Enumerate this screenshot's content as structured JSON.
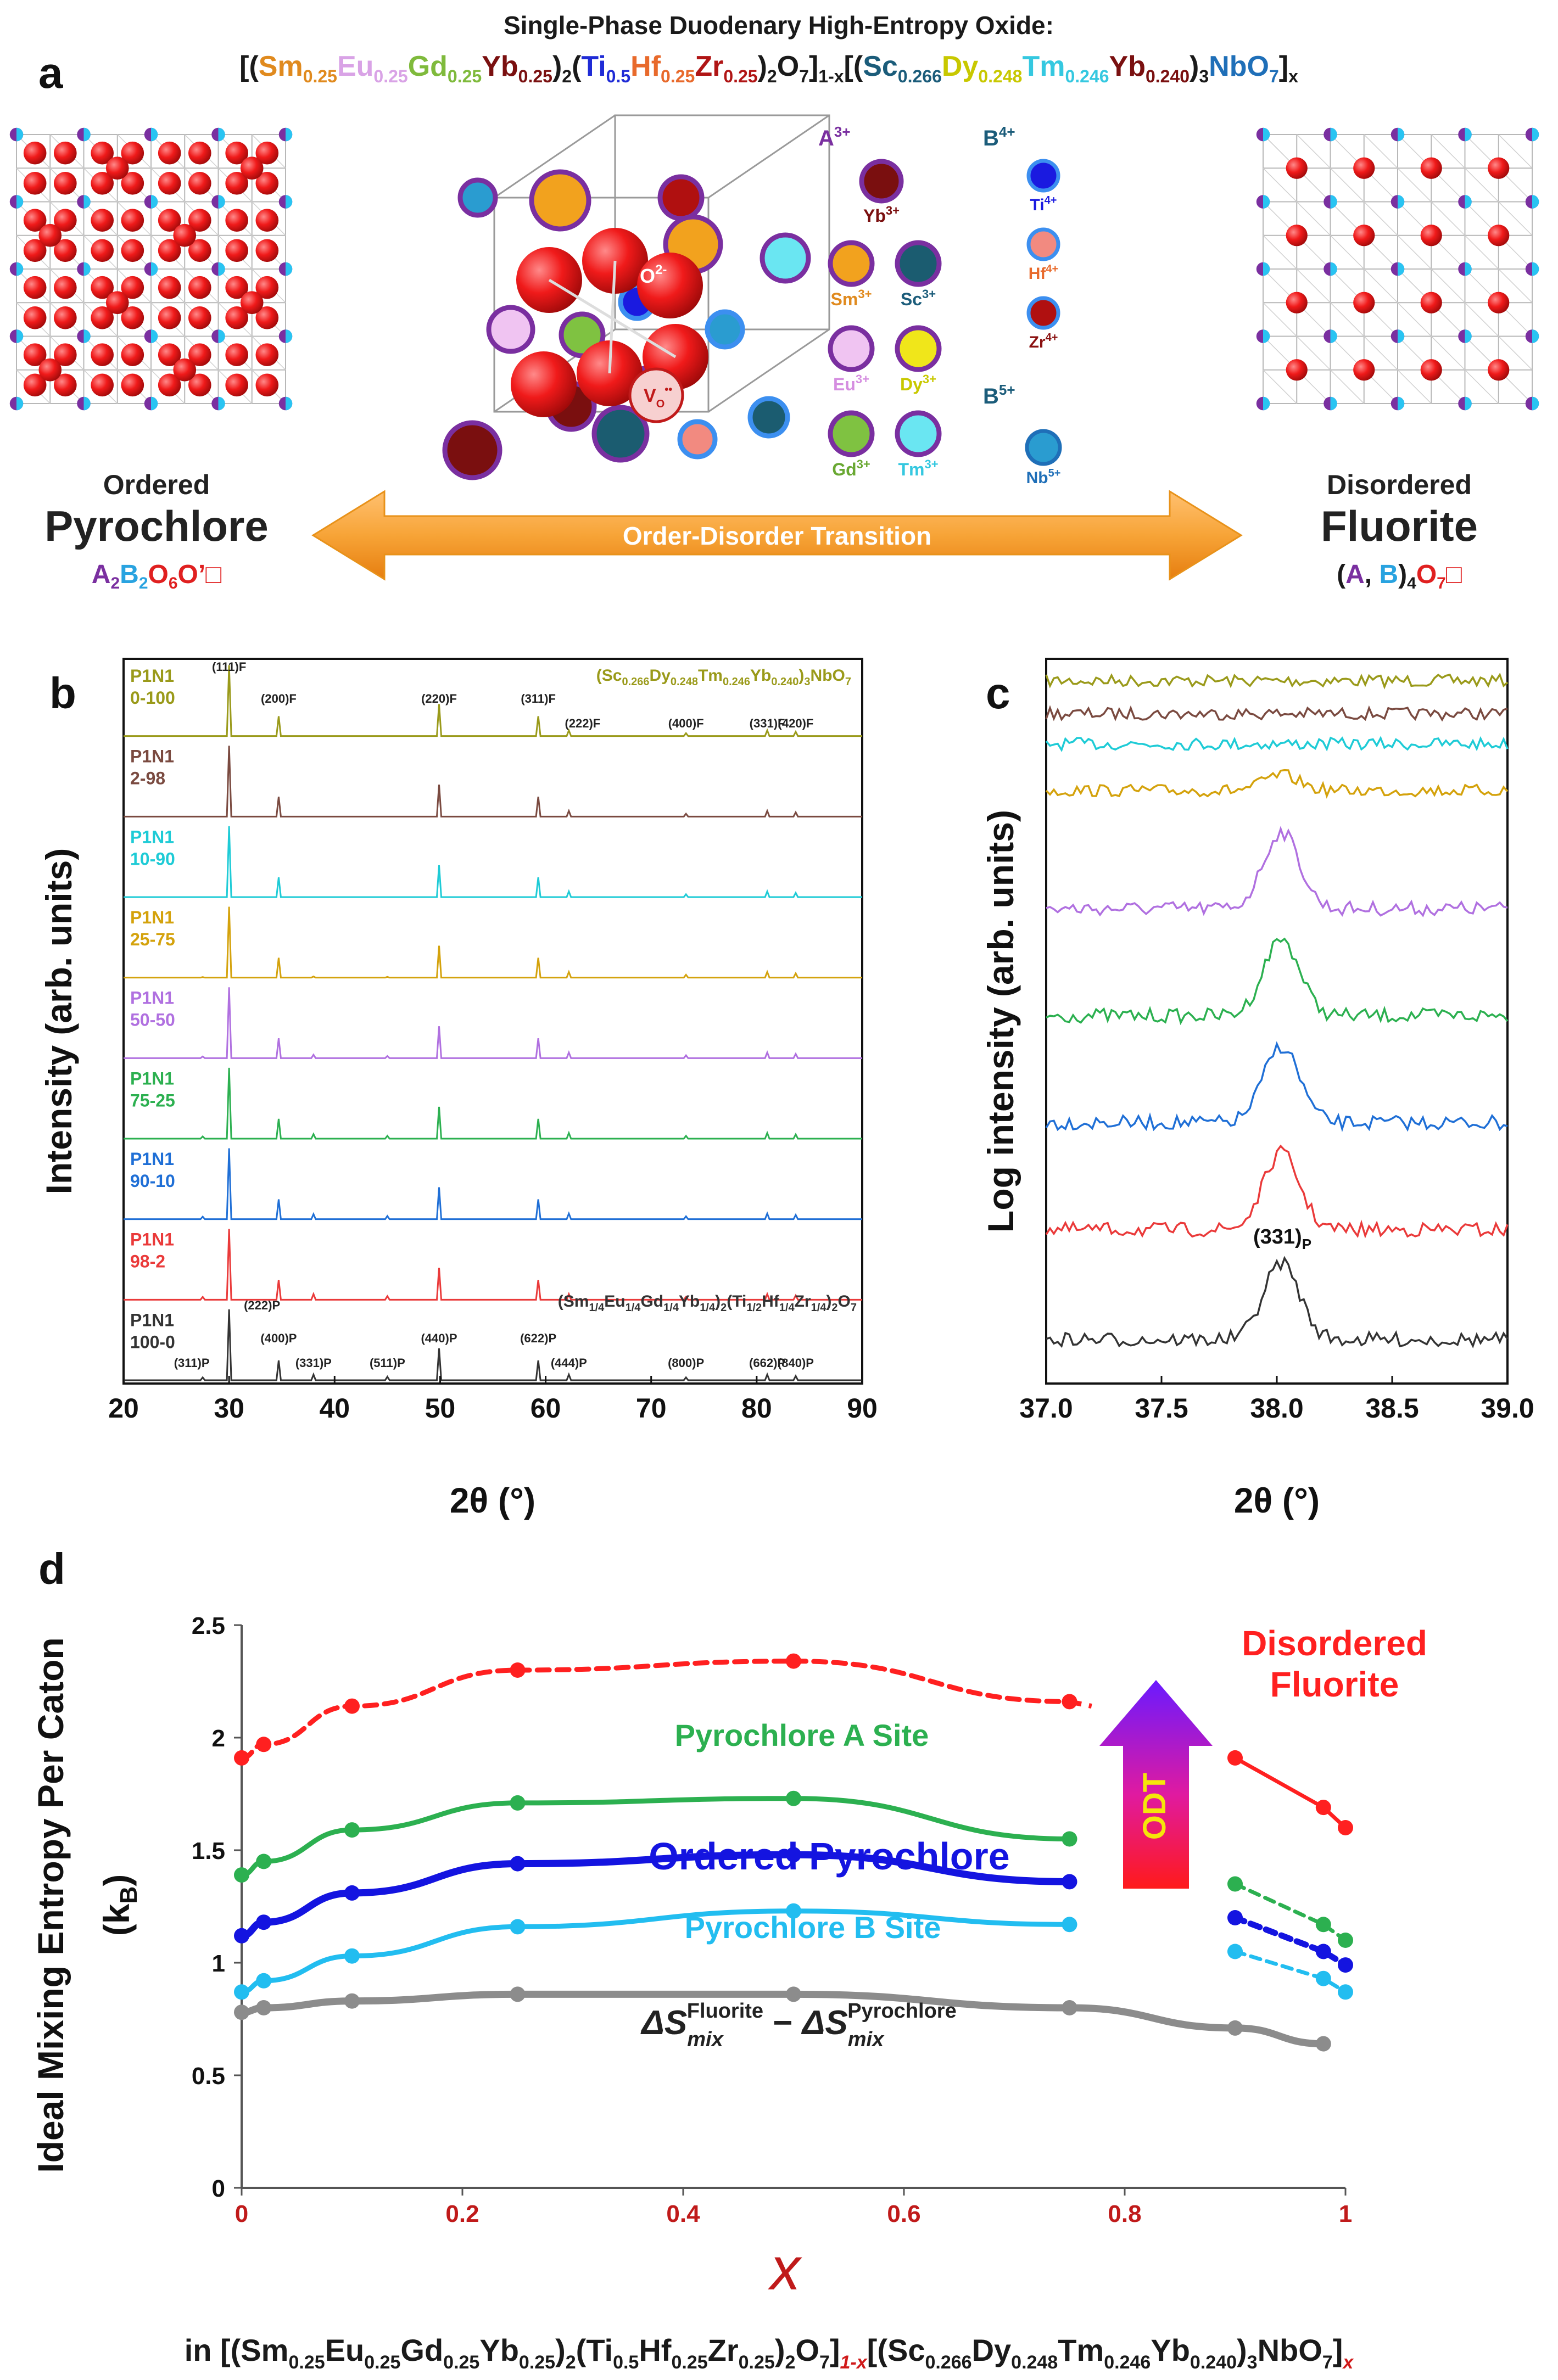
{
  "title": "Single-Phase Duodenary High-Entropy Oxide:",
  "formula_top": {
    "segments": [
      {
        "t": "[(",
        "c": "#1a1a1a"
      },
      {
        "t": "Sm",
        "c": "#e08a1e"
      },
      {
        "t": "0.25",
        "c": "#e08a1e",
        "sub": true
      },
      {
        "t": "Eu",
        "c": "#d9a3e6"
      },
      {
        "t": "0.25",
        "c": "#d9a3e6",
        "sub": true
      },
      {
        "t": "Gd",
        "c": "#7fba3c"
      },
      {
        "t": "0.25",
        "c": "#7fba3c",
        "sub": true
      },
      {
        "t": "Yb",
        "c": "#7a1010"
      },
      {
        "t": "0.25",
        "c": "#7a1010",
        "sub": true
      },
      {
        "t": ")",
        "c": "#1a1a1a"
      },
      {
        "t": "2",
        "c": "#1a1a1a",
        "sub": true
      },
      {
        "t": "(",
        "c": "#1a1a1a"
      },
      {
        "t": "Ti",
        "c": "#1f2bd6"
      },
      {
        "t": "0.5",
        "c": "#1f2bd6",
        "sub": true
      },
      {
        "t": "Hf",
        "c": "#e86a2c"
      },
      {
        "t": "0.25",
        "c": "#e86a2c",
        "sub": true
      },
      {
        "t": "Zr",
        "c": "#b01515"
      },
      {
        "t": "0.25",
        "c": "#b01515",
        "sub": true
      },
      {
        "t": ")",
        "c": "#1a1a1a"
      },
      {
        "t": "2",
        "c": "#1a1a1a",
        "sub": true
      },
      {
        "t": "O",
        "c": "#1a1a1a"
      },
      {
        "t": "7",
        "c": "#1a1a1a",
        "sub": true
      },
      {
        "t": "]",
        "c": "#1a1a1a"
      },
      {
        "t": "1-x",
        "c": "#1a1a1a",
        "sub": true
      },
      {
        "t": "[(",
        "c": "#1a1a1a"
      },
      {
        "t": "Sc",
        "c": "#1b5c7a"
      },
      {
        "t": "0.266",
        "c": "#1b5c7a",
        "sub": true
      },
      {
        "t": "Dy",
        "c": "#c8c800"
      },
      {
        "t": "0.248",
        "c": "#c8c800",
        "sub": true
      },
      {
        "t": "Tm",
        "c": "#35c8e0"
      },
      {
        "t": "0.246",
        "c": "#35c8e0",
        "sub": true
      },
      {
        "t": "Yb",
        "c": "#7a1010"
      },
      {
        "t": "0.240",
        "c": "#7a1010",
        "sub": true
      },
      {
        "t": ")",
        "c": "#1a1a1a"
      },
      {
        "t": "3",
        "c": "#1a1a1a",
        "sub": true
      },
      {
        "t": "NbO",
        "c": "#1f6fb8"
      },
      {
        "t": "7",
        "c": "#1f6fb8",
        "sub": true
      },
      {
        "t": "]",
        "c": "#1a1a1a"
      },
      {
        "t": "x",
        "c": "#1a1a1a",
        "sub": true
      }
    ]
  },
  "panel_labels": [
    "a",
    "b",
    "c",
    "d"
  ],
  "panel_a": {
    "left": {
      "caption_small": "Ordered",
      "caption_big": "Pyrochlore",
      "formula": [
        {
          "t": "A",
          "c": "#7a2fa0"
        },
        {
          "t": "2",
          "c": "#7a2fa0",
          "sub": true
        },
        {
          "t": "B",
          "c": "#29a3e0"
        },
        {
          "t": "2",
          "c": "#29a3e0",
          "sub": true
        },
        {
          "t": "O",
          "c": "#e02020"
        },
        {
          "t": "6",
          "c": "#e02020",
          "sub": true
        },
        {
          "t": "O’",
          "c": "#e02020"
        },
        {
          "t": "□",
          "c": "#e02020"
        }
      ]
    },
    "right": {
      "caption_small": "Disordered",
      "caption_big": "Fluorite",
      "formula": [
        {
          "t": "(",
          "c": "#1a1a1a"
        },
        {
          "t": "A",
          "c": "#7a2fa0"
        },
        {
          "t": ", ",
          "c": "#1a1a1a"
        },
        {
          "t": "B",
          "c": "#29a3e0"
        },
        {
          "t": ")",
          "c": "#1a1a1a"
        },
        {
          "t": "4",
          "c": "#1a1a1a",
          "sub": true
        },
        {
          "t": "O",
          "c": "#e02020"
        },
        {
          "t": "7",
          "c": "#e02020",
          "sub": true
        },
        {
          "t": "□",
          "c": "#e02020"
        }
      ]
    },
    "arrow_label": "Order-Disorder Transition",
    "cell_labels": {
      "oxygen": "O",
      "oxygen_sup": "2-",
      "vacancy": "V",
      "vacancy_sub": "O",
      "vacancy_sup": "••"
    },
    "a_site": {
      "header": "A",
      "header_sup": "3+",
      "ions": [
        {
          "el": "Yb",
          "sup": "3+",
          "fill": "#7a0f0f",
          "text": "#7a0f0f"
        },
        {
          "el": "Sm",
          "sup": "3+",
          "fill": "#f2a21e",
          "text": "#e08a1e"
        },
        {
          "el": "Sc",
          "sup": "3+",
          "fill": "#1b5c70",
          "text": "#1b5c7a"
        },
        {
          "el": "Eu",
          "sup": "3+",
          "fill": "#f0c4f2",
          "text": "#d58ee0"
        },
        {
          "el": "Dy",
          "sup": "3+",
          "fill": "#f0e61a",
          "text": "#c8c800"
        },
        {
          "el": "Gd",
          "sup": "3+",
          "fill": "#7fc241",
          "text": "#69a832"
        },
        {
          "el": "Tm",
          "sup": "3+",
          "fill": "#6ae6f2",
          "text": "#35c8e0"
        }
      ]
    },
    "b4_site": {
      "header": "B",
      "header_sup": "4+",
      "ions": [
        {
          "el": "Ti",
          "sup": "4+",
          "fill": "#1a1ae0",
          "text": "#1a1ae0"
        },
        {
          "el": "Hf",
          "sup": "4+",
          "fill": "#f28a80",
          "text": "#e86a2c"
        },
        {
          "el": "Zr",
          "sup": "4+",
          "fill": "#b01010",
          "text": "#8a1010"
        }
      ]
    },
    "b5_site": {
      "header": "B",
      "header_sup": "5+",
      "ions": [
        {
          "el": "Nb",
          "sup": "5+",
          "fill": "#2a9cd0",
          "text": "#1f6fb8"
        }
      ]
    }
  },
  "panel_b": {
    "chart_data": {
      "type": "line",
      "xlabel": "2θ (°)",
      "ylabel": "Intensity (arb. units)",
      "xlim": [
        20,
        90
      ],
      "xticks": [
        20,
        30,
        40,
        50,
        60,
        70,
        80,
        90
      ],
      "top_formula": "(Sc0.266Dy0.248Tm0.246Yb0.240)3NbO7",
      "bottom_formula": "(Sm1/4Eu1/4Gd1/4Yb1/4)2(Ti1/2Hf1/4Zr1/4)2O7",
      "fluorite_peaks": [
        {
          "x": 30.0,
          "h": 1.0,
          "label": "(111)F"
        },
        {
          "x": 34.7,
          "h": 0.28,
          "label": "(200)F"
        },
        {
          "x": 49.9,
          "h": 0.45,
          "label": "(220)F"
        },
        {
          "x": 59.3,
          "h": 0.28,
          "label": "(311)F"
        },
        {
          "x": 62.2,
          "h": 0.08,
          "label": "(222)F"
        },
        {
          "x": 73.3,
          "h": 0.04,
          "label": "(400)F"
        },
        {
          "x": 81.0,
          "h": 0.08,
          "label": "(331)F"
        },
        {
          "x": 83.7,
          "h": 0.06,
          "label": "(420)F"
        }
      ],
      "pyrochlore_peaks": [
        {
          "x": 27.5,
          "h": 0.04,
          "label": "(311)P"
        },
        {
          "x": 30.0,
          "h": 1.0,
          "label": "(222)P"
        },
        {
          "x": 34.7,
          "h": 0.28,
          "label": "(400)P"
        },
        {
          "x": 38.0,
          "h": 0.08,
          "label": "(331)P"
        },
        {
          "x": 45.0,
          "h": 0.05,
          "label": "(511)P"
        },
        {
          "x": 49.9,
          "h": 0.45,
          "label": "(440)P"
        },
        {
          "x": 59.3,
          "h": 0.28,
          "label": "(622)P"
        },
        {
          "x": 62.2,
          "h": 0.08,
          "label": "(444)P"
        },
        {
          "x": 73.3,
          "h": 0.04,
          "label": "(800)P"
        },
        {
          "x": 81.0,
          "h": 0.06,
          "label": "(662)P"
        },
        {
          "x": 83.7,
          "h": 0.06,
          "label": "(840)P"
        }
      ],
      "series": [
        {
          "name": "P1N1 0-100",
          "line1": "P1N1",
          "line2": "0-100",
          "color": "#9a9a1a",
          "pyro": 0
        },
        {
          "name": "P1N1 2-98",
          "line1": "P1N1",
          "line2": "2-98",
          "color": "#7a4a40",
          "pyro": 0
        },
        {
          "name": "P1N1 10-90",
          "line1": "P1N1",
          "line2": "10-90",
          "color": "#1ecbd6",
          "pyro": 0
        },
        {
          "name": "P1N1 25-75",
          "line1": "P1N1",
          "line2": "25-75",
          "color": "#d4a20c",
          "pyro": 0.2
        },
        {
          "name": "P1N1 50-50",
          "line1": "P1N1",
          "line2": "50-50",
          "color": "#b070e0",
          "pyro": 0.6
        },
        {
          "name": "P1N1 75-25",
          "line1": "P1N1",
          "line2": "75-25",
          "color": "#2cb050",
          "pyro": 0.8
        },
        {
          "name": "P1N1 90-10",
          "line1": "P1N1",
          "line2": "90-10",
          "color": "#1f6fd6",
          "pyro": 0.9
        },
        {
          "name": "P1N1 98-2",
          "line1": "P1N1",
          "line2": "98-2",
          "color": "#ea3a3a",
          "pyro": 1.0
        },
        {
          "name": "P1N1 100-0",
          "line1": "P1N1",
          "line2": "100-0",
          "color": "#333333",
          "pyro": 1.0
        }
      ]
    }
  },
  "panel_c": {
    "chart_data": {
      "type": "line",
      "xlabel": "2θ (°)",
      "ylabel": "Log intensity (arb. units)",
      "xlim": [
        37.0,
        39.0
      ],
      "xticks": [
        "37.0",
        "37.5",
        "38.0",
        "38.5",
        "39.0"
      ],
      "peak_label": "(331)P",
      "peak_center": 38.02,
      "series": [
        {
          "name": "P1N1 0-100",
          "color": "#9a9a1a",
          "peak": 0
        },
        {
          "name": "P1N1 2-98",
          "color": "#7a4a40",
          "peak": 0
        },
        {
          "name": "P1N1 10-90",
          "color": "#1ecbd6",
          "peak": 0
        },
        {
          "name": "P1N1 25-75",
          "color": "#d4a20c",
          "peak": 0.2
        },
        {
          "name": "P1N1 50-50",
          "color": "#b070e0",
          "peak": 1.0
        },
        {
          "name": "P1N1 75-25",
          "color": "#2cb050",
          "peak": 1.0
        },
        {
          "name": "P1N1 90-10",
          "color": "#1f6fd6",
          "peak": 1.0
        },
        {
          "name": "P1N1 98-2",
          "color": "#ea3a3a",
          "peak": 1.0
        },
        {
          "name": "P1N1 100-0",
          "color": "#333333",
          "peak": 1.0
        }
      ]
    }
  },
  "panel_d": {
    "chart_data": {
      "type": "line",
      "xlabel": "x",
      "ylabel_line1": "Ideal Mixing Entropy Per Caton",
      "ylabel_line2": "(k",
      "ylabel_sub": "B",
      "ylabel_end": ")",
      "xlim": [
        0,
        1
      ],
      "ylim": [
        0,
        2.5
      ],
      "xticks": [
        "0",
        "0.2",
        "0.4",
        "0.6",
        "0.8",
        "1"
      ],
      "yticks": [
        "0",
        "0.5",
        "1",
        "1.5",
        "2",
        "2.5"
      ],
      "series": [
        {
          "name": "Disordered Fluorite",
          "color": "#ff2020",
          "style": "dashed",
          "width": 9,
          "points": [
            [
              0,
              1.91
            ],
            [
              0.02,
              1.97
            ],
            [
              0.1,
              2.14
            ],
            [
              0.25,
              2.3
            ],
            [
              0.5,
              2.34
            ],
            [
              0.75,
              2.16
            ]
          ],
          "tail": [
            [
              0.9,
              1.91
            ],
            [
              0.98,
              1.69
            ],
            [
              1.0,
              1.6
            ]
          ],
          "tail_style": "solid"
        },
        {
          "name": "Pyrochlore A Site",
          "color": "#2cb050",
          "style": "solid",
          "width": 9,
          "points": [
            [
              0,
              1.39
            ],
            [
              0.02,
              1.45
            ],
            [
              0.1,
              1.59
            ],
            [
              0.25,
              1.71
            ],
            [
              0.5,
              1.73
            ],
            [
              0.75,
              1.55
            ]
          ],
          "tail": [
            [
              0.9,
              1.35
            ],
            [
              0.98,
              1.17
            ],
            [
              1.0,
              1.1
            ]
          ],
          "tail_style": "dashed"
        },
        {
          "name": "Ordered Pyrochlore",
          "color": "#1414e0",
          "style": "solid",
          "width": 13,
          "points": [
            [
              0,
              1.12
            ],
            [
              0.02,
              1.18
            ],
            [
              0.1,
              1.31
            ],
            [
              0.25,
              1.44
            ],
            [
              0.5,
              1.48
            ],
            [
              0.75,
              1.36
            ]
          ],
          "tail": [
            [
              0.9,
              1.2
            ],
            [
              0.98,
              1.05
            ],
            [
              1.0,
              0.99
            ]
          ],
          "tail_style": "dashed"
        },
        {
          "name": "Pyrochlore B Site",
          "color": "#22bdf0",
          "style": "solid",
          "width": 9,
          "points": [
            [
              0,
              0.87
            ],
            [
              0.02,
              0.92
            ],
            [
              0.1,
              1.03
            ],
            [
              0.25,
              1.16
            ],
            [
              0.5,
              1.23
            ],
            [
              0.75,
              1.17
            ]
          ],
          "tail": [
            [
              0.9,
              1.05
            ],
            [
              0.98,
              0.93
            ],
            [
              1.0,
              0.87
            ]
          ],
          "tail_style": "dashed"
        },
        {
          "name": "ΔS_mix^Fluorite − ΔS_mix^Pyrochlore",
          "color": "#8c8c8c",
          "style": "solid",
          "width": 13,
          "points": [
            [
              0,
              0.78
            ],
            [
              0.02,
              0.8
            ],
            [
              0.1,
              0.83
            ],
            [
              0.25,
              0.86
            ],
            [
              0.5,
              0.86
            ],
            [
              0.75,
              0.8
            ],
            [
              0.9,
              0.71
            ],
            [
              0.98,
              0.64
            ]
          ],
          "tail": [],
          "tail_style": "solid"
        }
      ],
      "annotations": {
        "disordered_line1": "Disordered",
        "disordered_line2": "Fluorite",
        "a_site": "Pyrochlore A Site",
        "ordered": "Ordered Pyrochlore",
        "b_site": "Pyrochlore B Site",
        "delta_s": "ΔS",
        "mix": "mix",
        "fluorite": "Fluorite",
        "pyrochlore": "Pyrochlore",
        "minus": " − ",
        "odt": "ODT"
      }
    }
  },
  "bottom_formula": {
    "segments": [
      {
        "t": "in [(Sm",
        "c": "#1a1a1a"
      },
      {
        "t": "0.25",
        "c": "#1a1a1a",
        "sub": true
      },
      {
        "t": "Eu",
        "c": "#1a1a1a"
      },
      {
        "t": "0.25",
        "c": "#1a1a1a",
        "sub": true
      },
      {
        "t": "Gd",
        "c": "#1a1a1a"
      },
      {
        "t": "0.25",
        "c": "#1a1a1a",
        "sub": true
      },
      {
        "t": "Yb",
        "c": "#1a1a1a"
      },
      {
        "t": "0.25",
        "c": "#1a1a1a",
        "sub": true
      },
      {
        "t": ")",
        "c": "#1a1a1a"
      },
      {
        "t": "2",
        "c": "#1a1a1a",
        "sub": true
      },
      {
        "t": "(Ti",
        "c": "#1a1a1a"
      },
      {
        "t": "0.5",
        "c": "#1a1a1a",
        "sub": true
      },
      {
        "t": "Hf",
        "c": "#1a1a1a"
      },
      {
        "t": "0.25",
        "c": "#1a1a1a",
        "sub": true
      },
      {
        "t": "Zr",
        "c": "#1a1a1a"
      },
      {
        "t": "0.25",
        "c": "#1a1a1a",
        "sub": true
      },
      {
        "t": ")",
        "c": "#1a1a1a"
      },
      {
        "t": "2",
        "c": "#1a1a1a",
        "sub": true
      },
      {
        "t": "O",
        "c": "#1a1a1a"
      },
      {
        "t": "7",
        "c": "#1a1a1a",
        "sub": true
      },
      {
        "t": "]",
        "c": "#1a1a1a"
      },
      {
        "t": "1-x",
        "c": "#d01a1a",
        "sub": true,
        "italic": true
      },
      {
        "t": "[(Sc",
        "c": "#1a1a1a"
      },
      {
        "t": "0.266",
        "c": "#1a1a1a",
        "sub": true
      },
      {
        "t": "Dy",
        "c": "#1a1a1a"
      },
      {
        "t": "0.248",
        "c": "#1a1a1a",
        "sub": true
      },
      {
        "t": "Tm",
        "c": "#1a1a1a"
      },
      {
        "t": "0.246",
        "c": "#1a1a1a",
        "sub": true
      },
      {
        "t": "Yb",
        "c": "#1a1a1a"
      },
      {
        "t": "0.240",
        "c": "#1a1a1a",
        "sub": true
      },
      {
        "t": ")",
        "c": "#1a1a1a"
      },
      {
        "t": "3",
        "c": "#1a1a1a",
        "sub": true
      },
      {
        "t": "NbO",
        "c": "#1a1a1a"
      },
      {
        "t": "7",
        "c": "#1a1a1a",
        "sub": true
      },
      {
        "t": "]",
        "c": "#1a1a1a"
      },
      {
        "t": "x",
        "c": "#d01a1a",
        "sub": true,
        "italic": true
      }
    ]
  }
}
